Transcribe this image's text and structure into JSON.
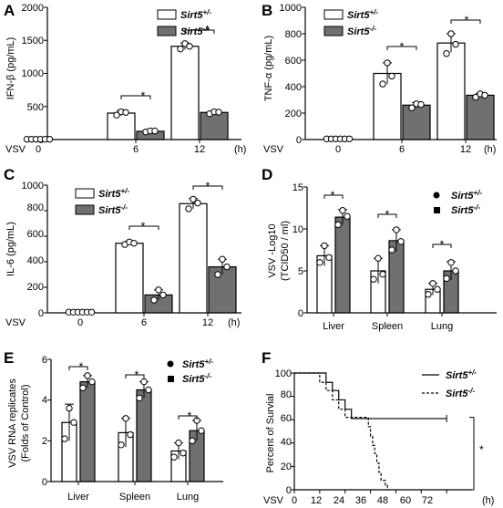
{
  "chart_data": [
    {
      "panel": "A",
      "type": "bar",
      "ylabel": "IFN-β (pg/mL)",
      "xlabel_prefix": "VSV",
      "x_unit": "(h)",
      "categories": [
        "0",
        "6",
        "12"
      ],
      "ylim": [
        0,
        2000
      ],
      "yticks": [
        0,
        500,
        1000,
        1500,
        2000
      ],
      "legend": [
        "Sirt5+/-",
        "Sirt5-/-"
      ],
      "series": [
        {
          "name": "Sirt5+/-",
          "values": [
            5,
            400,
            1410
          ],
          "err": [
            0,
            40,
            50
          ],
          "points": [
            [
              5,
              5,
              5
            ],
            [
              370,
              420,
              410
            ],
            [
              1370,
              1450,
              1410
            ]
          ]
        },
        {
          "name": "Sirt5-/-",
          "values": [
            5,
            125,
            410
          ],
          "err": [
            0,
            12,
            20
          ],
          "points": [
            [
              5,
              5,
              5
            ],
            [
              115,
              130,
              130
            ],
            [
              390,
              420,
              415
            ]
          ]
        }
      ],
      "significance": [
        {
          "category": "6",
          "label": "*"
        },
        {
          "category": "12",
          "label": "*"
        }
      ]
    },
    {
      "panel": "B",
      "type": "bar",
      "ylabel": "TNF-α (pg/mL)",
      "xlabel_prefix": "VSV",
      "x_unit": "(h)",
      "categories": [
        "0",
        "6",
        "12"
      ],
      "ylim": [
        0,
        1000
      ],
      "yticks": [
        0,
        200,
        400,
        600,
        800,
        1000
      ],
      "legend": [
        "Sirt5+/-",
        "Sirt5-/-"
      ],
      "series": [
        {
          "name": "Sirt5+/-",
          "values": [
            5,
            500,
            730
          ],
          "err": [
            0,
            80,
            70
          ],
          "points": [
            [
              5,
              5,
              5
            ],
            [
              420,
              580,
              480
            ],
            [
              650,
              800,
              720
            ]
          ]
        },
        {
          "name": "Sirt5-/-",
          "values": [
            5,
            260,
            335
          ],
          "err": [
            0,
            20,
            15
          ],
          "points": [
            [
              5,
              5,
              5
            ],
            [
              240,
              270,
              265
            ],
            [
              320,
              345,
              335
            ]
          ]
        }
      ],
      "significance": [
        {
          "category": "6",
          "label": "*"
        },
        {
          "category": "12",
          "label": "*"
        }
      ]
    },
    {
      "panel": "C",
      "type": "bar",
      "ylabel": "IL-6 (pg/mL)",
      "xlabel_prefix": "VSV",
      "x_unit": "(h)",
      "categories": [
        "0",
        "6",
        "12"
      ],
      "ylim": [
        0,
        1000
      ],
      "yticks": [
        0,
        200,
        400,
        600,
        800,
        1000
      ],
      "legend": [
        "Sirt5+/-",
        "Sirt5-/-"
      ],
      "series": [
        {
          "name": "Sirt5+/-",
          "values": [
            5,
            545,
            855
          ],
          "err": [
            0,
            15,
            40
          ],
          "points": [
            [
              5,
              5,
              5
            ],
            [
              535,
              555,
              545
            ],
            [
              815,
              890,
              860
            ]
          ]
        },
        {
          "name": "Sirt5-/-",
          "values": [
            5,
            140,
            360
          ],
          "err": [
            0,
            40,
            60
          ],
          "points": [
            [
              5,
              5,
              5
            ],
            [
              100,
              180,
              140
            ],
            [
              300,
              420,
              360
            ]
          ]
        }
      ],
      "significance": [
        {
          "category": "6",
          "label": "*"
        },
        {
          "category": "12",
          "label": "*"
        }
      ]
    },
    {
      "panel": "D",
      "type": "bar",
      "ylabel": "VSV -Log10",
      "ylabel2": "(TCID50 / ml)",
      "categories": [
        "Liver",
        "Spleen",
        "Lung"
      ],
      "ylim": [
        0,
        15
      ],
      "yticks": [
        0,
        5,
        10,
        15
      ],
      "legend": [
        "Sirt5+/-",
        "Sirt5-/-"
      ],
      "series": [
        {
          "name": "Sirt5+/-",
          "values": [
            6.8,
            5.0,
            2.8
          ],
          "err": [
            1.2,
            1.5,
            0.7
          ],
          "points": [
            [
              6,
              8,
              6.6
            ],
            [
              4,
              6.5,
              4.6
            ],
            [
              2.2,
              3.5,
              2.8
            ]
          ]
        },
        {
          "name": "Sirt5-/-",
          "values": [
            11.4,
            8.6,
            5.0
          ],
          "err": [
            0.9,
            1.3,
            1.1
          ],
          "points": [
            [
              10.5,
              12.2,
              11.5
            ],
            [
              7.5,
              9.9,
              8.5
            ],
            [
              4.1,
              6.0,
              5.0
            ]
          ]
        }
      ],
      "significance": [
        {
          "category": "Liver",
          "label": "*"
        },
        {
          "category": "Spleen",
          "label": "*"
        },
        {
          "category": "Lung",
          "label": "*"
        }
      ]
    },
    {
      "panel": "E",
      "type": "bar",
      "ylabel": "VSV RNA replicates",
      "ylabel2": "(Folds of Control)",
      "categories": [
        "Liver",
        "Spleen",
        "Lung"
      ],
      "ylim": [
        0,
        6
      ],
      "yticks": [
        0,
        2,
        4,
        6
      ],
      "legend": [
        "Sirt5+/-",
        "Sirt5-/-"
      ],
      "series": [
        {
          "name": "Sirt5+/-",
          "values": [
            2.9,
            2.4,
            1.5
          ],
          "err": [
            0.9,
            0.7,
            0.4
          ],
          "points": [
            [
              2.1,
              3.6,
              2.9
            ],
            [
              1.8,
              3.1,
              2.3
            ],
            [
              1.2,
              1.9,
              1.4
            ]
          ]
        },
        {
          "name": "Sirt5-/-",
          "values": [
            4.9,
            4.5,
            2.5
          ],
          "err": [
            0.3,
            0.4,
            0.5
          ],
          "points": [
            [
              4.6,
              5.2,
              4.9
            ],
            [
              4.1,
              4.9,
              4.5
            ],
            [
              2.0,
              3.0,
              2.5
            ]
          ]
        }
      ],
      "significance": [
        {
          "category": "Liver",
          "label": "*"
        },
        {
          "category": "Spleen",
          "label": "*"
        },
        {
          "category": "Lung",
          "label": "*"
        }
      ]
    },
    {
      "panel": "F",
      "type": "line",
      "ylabel": "Percent of Survial",
      "xlabel_prefix": "VSV",
      "x_unit": "(h)",
      "xlim": [
        0,
        84
      ],
      "xticks": [
        0,
        12,
        24,
        36,
        48,
        60,
        72
      ],
      "ylim": [
        0,
        100
      ],
      "yticks": [
        0,
        20,
        40,
        60,
        80,
        100
      ],
      "legend": [
        "Sirt5+/-",
        "Sirt5-/-"
      ],
      "series": [
        {
          "name": "Sirt5+/-",
          "x": [
            0,
            15,
            18,
            21,
            24,
            27,
            34,
            72
          ],
          "y": [
            100,
            92,
            85,
            77,
            69,
            61,
            61,
            61
          ]
        },
        {
          "name": "Sirt5-/-",
          "x": [
            0,
            12,
            15,
            18,
            21,
            24,
            30,
            35,
            36,
            37,
            38,
            39,
            40,
            41,
            42,
            43,
            44,
            46
          ],
          "y": [
            100,
            92,
            85,
            77,
            69,
            62,
            62,
            54,
            46,
            38,
            31,
            23,
            15,
            8,
            8,
            4,
            0,
            0
          ]
        }
      ],
      "significance": [
        {
          "label": "*"
        }
      ]
    }
  ],
  "panels": [
    {
      "letter": "A",
      "ylabel": "IFN-β (pg/mL)",
      "xprefix": "VSV",
      "xunit": "(h)",
      "cats": [
        "0",
        "6",
        "12"
      ],
      "ticks": [
        "0",
        "500",
        "1000",
        "1500",
        "2000"
      ],
      "star": "*"
    },
    {
      "letter": "B",
      "ylabel": "TNF-α (pg/mL)",
      "xprefix": "VSV",
      "xunit": "(h)",
      "cats": [
        "0",
        "6",
        "12"
      ],
      "ticks": [
        "0",
        "200",
        "400",
        "600",
        "800",
        "1000"
      ],
      "star": "*"
    },
    {
      "letter": "C",
      "ylabel": "IL-6 (pg/mL)",
      "xprefix": "VSV",
      "xunit": "(h)",
      "cats": [
        "0",
        "6",
        "12"
      ],
      "ticks": [
        "0",
        "200",
        "400",
        "600",
        "800",
        "1000"
      ],
      "star": "*"
    },
    {
      "letter": "D",
      "ylabel": "VSV -Log10",
      "ylabel2": "(TCID50 / ml)",
      "cats": [
        "Liver",
        "Spleen",
        "Lung"
      ],
      "ticks": [
        "0",
        "5",
        "10",
        "15"
      ],
      "star": "*"
    },
    {
      "letter": "E",
      "ylabel": "VSV RNA replicates",
      "ylabel2": "(Folds of Control)",
      "cats": [
        "Liver",
        "Spleen",
        "Lung"
      ],
      "ticks": [
        "0",
        "2",
        "4",
        "6"
      ],
      "star": "*"
    },
    {
      "letter": "F",
      "ylabel": "Percent of Survial",
      "xprefix": "VSV",
      "xunit": "(h)",
      "ticks": [
        "0",
        "20",
        "40",
        "60",
        "80",
        "100"
      ],
      "xticks": [
        "0",
        "12",
        "24",
        "36",
        "48",
        "60",
        "72"
      ],
      "star": "*"
    }
  ],
  "legend": {
    "gene": "Sirt5",
    "het": "+/-",
    "ko": "-/-"
  },
  "colors": {
    "wt_fill": "#ffffff",
    "ko_fill": "#707070",
    "stroke": "#000000"
  }
}
